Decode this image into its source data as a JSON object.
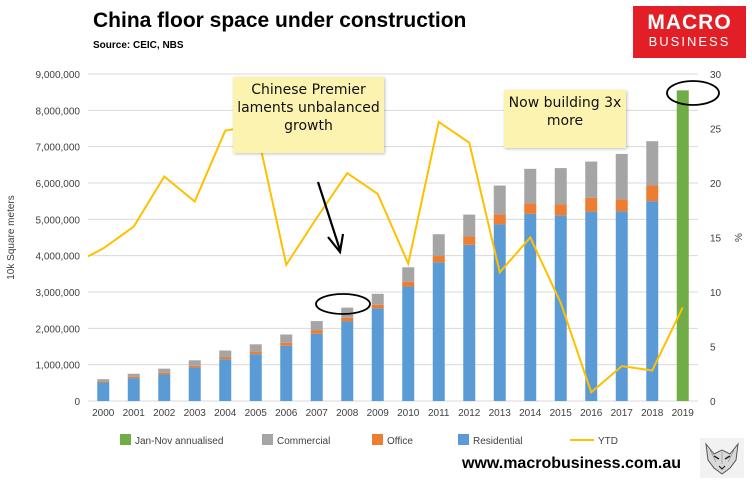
{
  "title": "China floor space under construction",
  "source": "Source: CEIC, NBS",
  "logo": {
    "line1": "MACRO",
    "line2": "BUSINESS"
  },
  "footer_url": "www.macrobusiness.com.au",
  "annotations": {
    "note1": "Chinese Premier\nlaments unbalanced\ngrowth",
    "note2": "Now building 3x\nmore"
  },
  "colors": {
    "residential": "#5b9bd5",
    "office": "#ed7d31",
    "commercial": "#a5a5a5",
    "annualised": "#70ad47",
    "ytd": "#ffc000",
    "logo": "#e21e26"
  },
  "chart_data": {
    "type": "bar",
    "categories": [
      "2000",
      "2001",
      "2002",
      "2003",
      "2004",
      "2005",
      "2006",
      "2007",
      "2008",
      "2009",
      "2010",
      "2011",
      "2012",
      "2013",
      "2014",
      "2015",
      "2016",
      "2017",
      "2018",
      "2019"
    ],
    "ylabel": "10k Square meters",
    "y2label": "%",
    "ylim": [
      0,
      9000000
    ],
    "y2lim": [
      0,
      30
    ],
    "yticks": [
      "0",
      "1,000,000",
      "2,000,000",
      "3,000,000",
      "4,000,000",
      "5,000,000",
      "6,000,000",
      "7,000,000",
      "8,000,000",
      "9,000,000"
    ],
    "y2ticks": [
      "0",
      "5",
      "10",
      "15",
      "20",
      "25",
      "30"
    ],
    "grid": true,
    "legend_position": "bottom",
    "series": [
      {
        "name": "Jan-Nov annualised",
        "values": [
          null,
          null,
          null,
          null,
          null,
          null,
          null,
          null,
          null,
          null,
          null,
          null,
          null,
          null,
          null,
          null,
          null,
          null,
          null,
          8550000
        ]
      },
      {
        "name": "Commercial",
        "values": [
          60000,
          80000,
          110000,
          150000,
          180000,
          200000,
          230000,
          260000,
          280000,
          300000,
          400000,
          600000,
          600000,
          800000,
          950000,
          1000000,
          1000000,
          1250000,
          1220000,
          null
        ]
      },
      {
        "name": "Office",
        "values": [
          30000,
          40000,
          50000,
          50000,
          60000,
          70000,
          80000,
          90000,
          100000,
          100000,
          130000,
          170000,
          230000,
          270000,
          290000,
          300000,
          380000,
          330000,
          430000,
          null
        ]
      },
      {
        "name": "Residential",
        "values": [
          510000,
          630000,
          730000,
          920000,
          1150000,
          1290000,
          1520000,
          1850000,
          2190000,
          2550000,
          3150000,
          3820000,
          4300000,
          4860000,
          5150000,
          5110000,
          5210000,
          5220000,
          5500000,
          null
        ]
      },
      {
        "name": "YTD",
        "axis": "right",
        "values": [
          14,
          16,
          20.6,
          18.3,
          24.8,
          25.3,
          12.5,
          16.8,
          20.9,
          19,
          12.6,
          25.6,
          23.7,
          11.8,
          15,
          9,
          0.8,
          3.2,
          2.8,
          8.6
        ]
      }
    ]
  }
}
